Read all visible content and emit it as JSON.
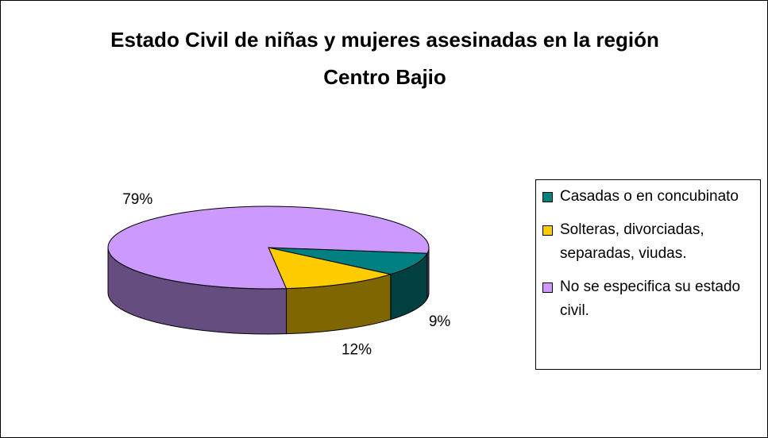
{
  "chart_data": {
    "type": "pie",
    "title": "Estado Civil de niñas y mujeres asesinadas en la región Centro Bajio",
    "categories": [
      "Casadas o en concubinato",
      "Solteras, divorciadas, separadas, viudas.",
      "No se especifica su estado civil."
    ],
    "values": [
      9,
      12,
      79
    ],
    "value_labels": [
      "9%",
      "12%",
      "79%"
    ],
    "colors": [
      "#008080",
      "#ffcc00",
      "#cc99ff"
    ],
    "legend": "right"
  }
}
